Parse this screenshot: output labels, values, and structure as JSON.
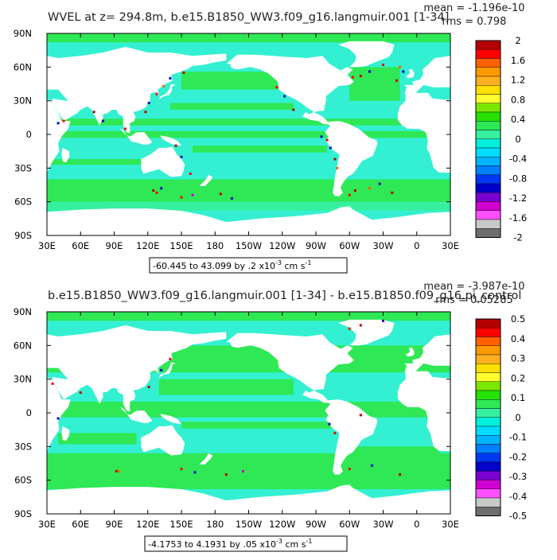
{
  "chart_data": [
    {
      "type": "heatmap",
      "title": "WVEL at z= 294.8m, b.e15.B1850_WW3.f09_g16.langmuir.001 [1-34]",
      "stats": {
        "mean": "mean = -1.196e-10",
        "rms": "rms = 0.798"
      },
      "x_ticks": [
        "30E",
        "60E",
        "90E",
        "120E",
        "150E",
        "180",
        "150W",
        "120W",
        "90W",
        "60W",
        "30W",
        "0",
        "30E"
      ],
      "y_ticks": [
        "90N",
        "60N",
        "30N",
        "0",
        "30S",
        "60S",
        "90S"
      ],
      "x_range": [
        30,
        390
      ],
      "y_range": [
        -90,
        90
      ],
      "range_text": "-60.445 to 43.099 by .2 x10",
      "range_exp": "-3",
      "range_units": " cm s",
      "range_units_exp": "-1",
      "colorbar_labels": [
        "2",
        "1.6",
        "1.2",
        "0.8",
        "0.4",
        "0",
        "-0.4",
        "-0.8",
        "-1.2",
        "-1.6",
        "-2"
      ],
      "field_min": -60.445,
      "field_max": 43.099,
      "contour_interval": 0.2
    },
    {
      "type": "heatmap",
      "title": "b.e15.B1850_WW3.f09_g16.langmuir.001 [1-34] - b.e15.B1850.f09_g16.pi_control",
      "stats": {
        "mean": "mean = -3.987e-10",
        "rms": "rms = 0.05285"
      },
      "x_ticks": [
        "30E",
        "60E",
        "90E",
        "120E",
        "150E",
        "180",
        "150W",
        "120W",
        "90W",
        "60W",
        "30W",
        "0",
        "30E"
      ],
      "y_ticks": [
        "90N",
        "60N",
        "30N",
        "0",
        "30S",
        "60S",
        "90S"
      ],
      "x_range": [
        30,
        390
      ],
      "y_range": [
        -90,
        90
      ],
      "range_text": "-4.1753 to 4.1931 by .05 x10",
      "range_exp": "-3",
      "range_units": " cm s",
      "range_units_exp": "-1",
      "colorbar_labels": [
        "0.5",
        "0.4",
        "0.3",
        "0.2",
        "0.1",
        "0",
        "-0.1",
        "-0.2",
        "-0.3",
        "-0.4",
        "-0.5"
      ],
      "field_min": -4.1753,
      "field_max": 4.1931,
      "contour_interval": 0.05
    }
  ],
  "colors": {
    "colorbar": [
      "#b40000",
      "#ff0000",
      "#ff6000",
      "#ff9900",
      "#ffb020",
      "#ffe000",
      "#ffff30",
      "#7ce800",
      "#26e000",
      "#2ee855",
      "#36f0a0",
      "#00f0dc",
      "#00dcff",
      "#00b4ff",
      "#0080ff",
      "#0038f0",
      "#0000c8",
      "#7a00d0",
      "#d000d0",
      "#ff50ff",
      "#c8c8c8",
      "#6e6e6e"
    ],
    "ocean_light": "#34f0d2",
    "ocean_green": "#2ee855",
    "land": "#ffffff"
  }
}
